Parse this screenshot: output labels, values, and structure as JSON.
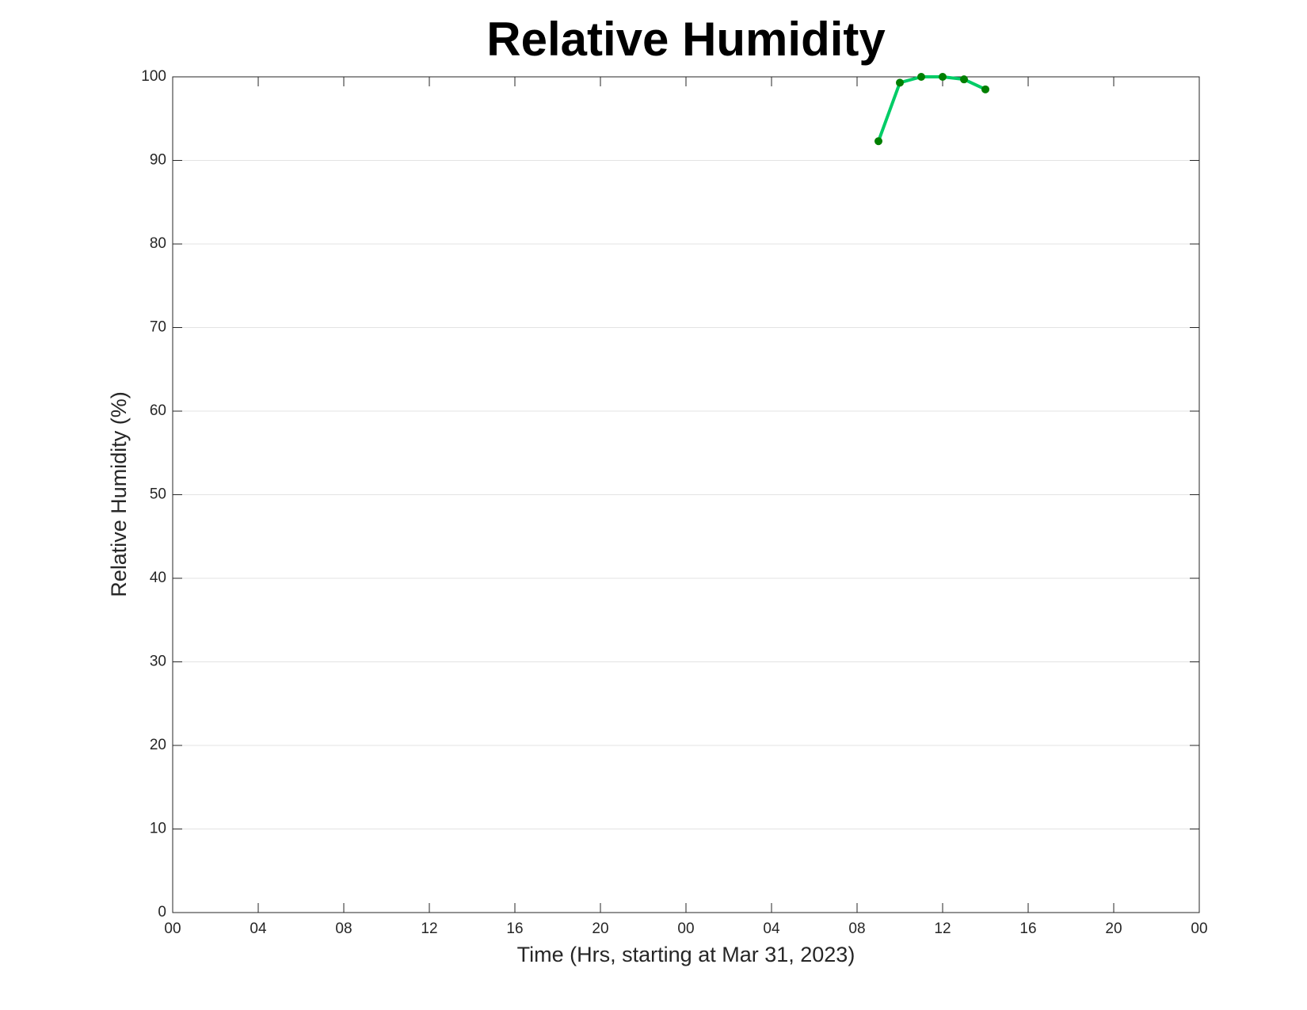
{
  "chart_data": {
    "type": "line",
    "title": "Relative Humidity",
    "xlabel": "Time (Hrs, starting at Mar 31, 2023)",
    "ylabel": "Relative Humidity (%)",
    "x": [
      33,
      34,
      35,
      36,
      37,
      38
    ],
    "values": [
      92.3,
      99.3,
      100,
      100,
      99.7,
      98.5
    ],
    "color": "#00cc66",
    "marker_color": "#007f00",
    "xlim": [
      0,
      48
    ],
    "xticks": [
      {
        "value": 0,
        "label": "00"
      },
      {
        "value": 4,
        "label": "04"
      },
      {
        "value": 8,
        "label": "08"
      },
      {
        "value": 12,
        "label": "12"
      },
      {
        "value": 16,
        "label": "16"
      },
      {
        "value": 20,
        "label": "20"
      },
      {
        "value": 24,
        "label": "00"
      },
      {
        "value": 28,
        "label": "04"
      },
      {
        "value": 32,
        "label": "08"
      },
      {
        "value": 36,
        "label": "12"
      },
      {
        "value": 40,
        "label": "16"
      },
      {
        "value": 44,
        "label": "20"
      },
      {
        "value": 48,
        "label": "00"
      }
    ],
    "ylim": [
      0,
      100
    ],
    "yticks": [
      0,
      10,
      20,
      30,
      40,
      50,
      60,
      70,
      80,
      90,
      100
    ],
    "grid": "y"
  }
}
